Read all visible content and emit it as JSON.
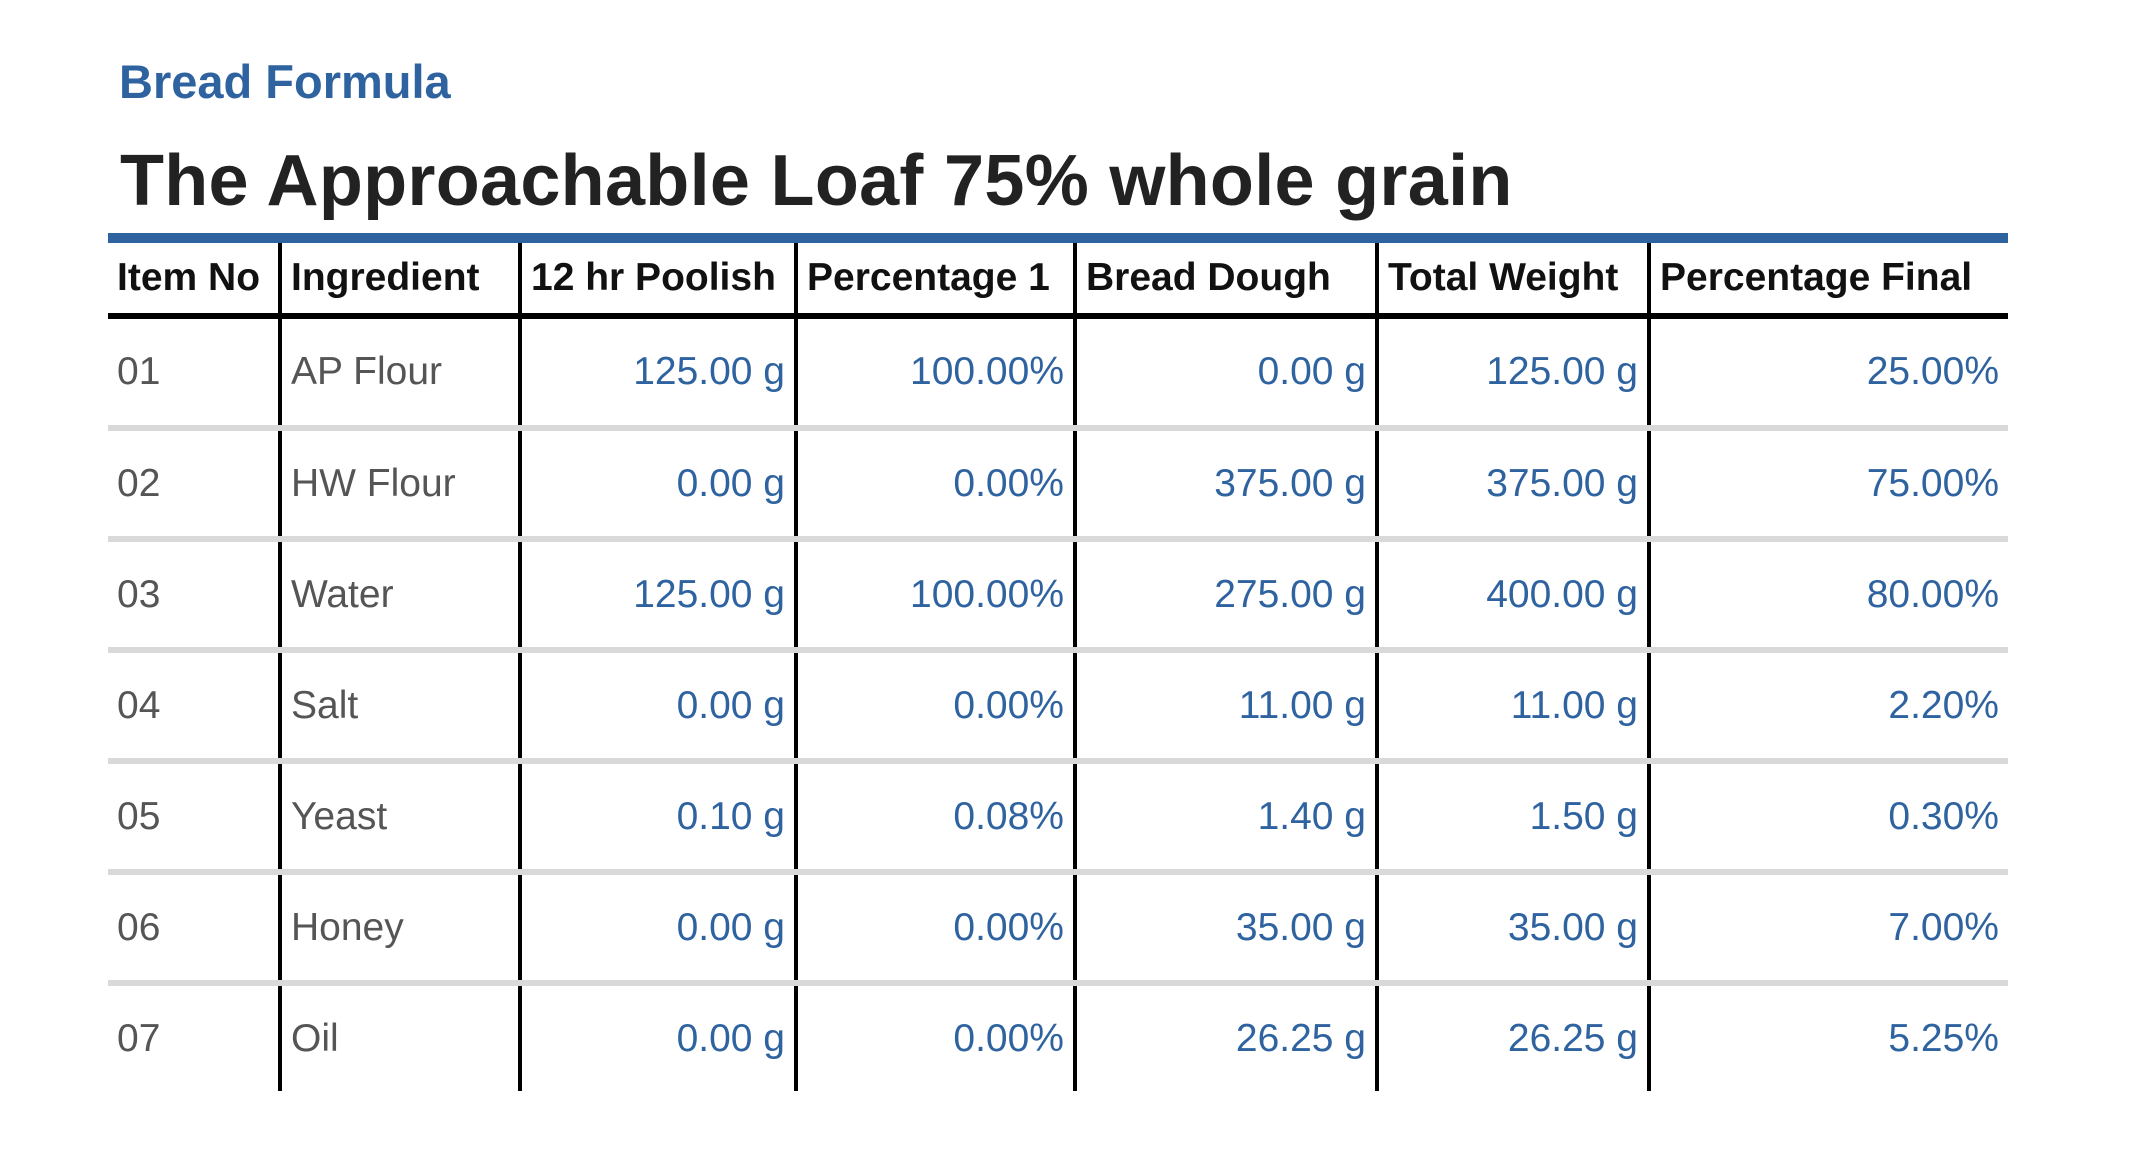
{
  "header": {
    "kicker": "Bread Formula",
    "title": "The Approachable Loaf 75% whole grain"
  },
  "colors": {
    "accent": "#2f63a0",
    "title": "#222222",
    "text": "#555555",
    "row_rule": "#d9d9d9"
  },
  "table": {
    "columns": [
      "Item No",
      "Ingredient",
      "12 hr Poolish",
      "Percentage 1",
      "Bread Dough",
      "Total Weight",
      "Percentage Final"
    ],
    "rows": [
      [
        "01",
        "AP Flour",
        "125.00 g",
        "100.00%",
        "0.00 g",
        "125.00 g",
        "25.00%"
      ],
      [
        "02",
        "HW Flour",
        "0.00 g",
        "0.00%",
        "375.00 g",
        "375.00 g",
        "75.00%"
      ],
      [
        "03",
        "Water",
        "125.00 g",
        "100.00%",
        "275.00 g",
        "400.00 g",
        "80.00%"
      ],
      [
        "04",
        "Salt",
        "0.00 g",
        "0.00%",
        "11.00 g",
        "11.00 g",
        "2.20%"
      ],
      [
        "05",
        "Yeast",
        "0.10 g",
        "0.08%",
        "1.40 g",
        "1.50 g",
        "0.30%"
      ],
      [
        "06",
        "Honey",
        "0.00 g",
        "0.00%",
        "35.00 g",
        "35.00 g",
        "7.00%"
      ],
      [
        "07",
        "Oil",
        "0.00 g",
        "0.00%",
        "26.25 g",
        "26.25 g",
        "5.25%"
      ]
    ]
  }
}
